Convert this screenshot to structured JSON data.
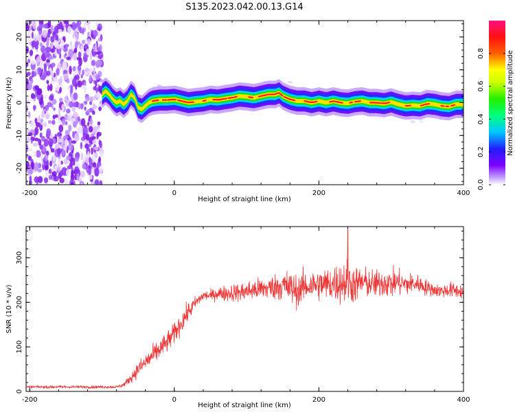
{
  "figure_title": "S135.2023.042.00.13.G14",
  "chart_data": [
    {
      "type": "heatmap",
      "xlabel": "Height of straight line (km)",
      "ylabel": "Frequency (Hz)",
      "xlim": [
        -205,
        400
      ],
      "ylim": [
        -25,
        25
      ],
      "x_ticks": [
        -200,
        0,
        200,
        400
      ],
      "y_ticks": [
        -20,
        -10,
        0,
        10,
        20
      ],
      "colorbar": {
        "label": "Normalized spectral amplitude",
        "range": [
          0.0,
          1.0
        ],
        "ticks": [
          0.0,
          0.2,
          0.4,
          0.6,
          0.8
        ],
        "tick_labels": [
          "0.0",
          "0.2",
          "0.4",
          "0.6",
          "0.8"
        ]
      },
      "noise_region_x": [
        -205,
        -100
      ],
      "ridge": {
        "x": [
          -100,
          -95,
          -90,
          -85,
          -80,
          -75,
          -70,
          -65,
          -60,
          -55,
          -50,
          -45,
          -40,
          -35,
          -30,
          -20,
          -10,
          0,
          10,
          20,
          30,
          40,
          50,
          60,
          70,
          80,
          90,
          100,
          110,
          120,
          130,
          140,
          145,
          150,
          160,
          170,
          180,
          190,
          200,
          210,
          220,
          230,
          240,
          250,
          260,
          270,
          280,
          290,
          300,
          310,
          320,
          330,
          340,
          350,
          360,
          370,
          380,
          390,
          400
        ],
        "freq": [
          2.5,
          3.5,
          2.5,
          1.0,
          0.0,
          0.5,
          -0.5,
          0.5,
          2.5,
          1.5,
          -1.5,
          -2.0,
          -1.0,
          0.0,
          0.5,
          0.8,
          0.8,
          1.0,
          0.5,
          0.0,
          0.3,
          0.5,
          1.0,
          0.8,
          1.2,
          1.5,
          2.0,
          1.8,
          1.5,
          2.0,
          2.5,
          2.5,
          3.0,
          2.0,
          1.0,
          0.5,
          0.5,
          0.0,
          0.5,
          0.0,
          0.5,
          0.0,
          -0.2,
          0.3,
          0.5,
          0.0,
          0.0,
          -0.3,
          0.2,
          -0.5,
          -1.0,
          -0.8,
          -1.0,
          -0.3,
          -0.5,
          -1.0,
          -1.2,
          -0.5,
          -0.5
        ]
      }
    },
    {
      "type": "line",
      "xlabel": "Height of straight line (km)",
      "ylabel": "SNR (10 * v/v)",
      "xlim": [
        -205,
        400
      ],
      "ylim": [
        0,
        370
      ],
      "x_ticks": [
        -200,
        0,
        200,
        400
      ],
      "y_ticks": [
        0,
        100,
        200,
        300
      ],
      "series": [
        {
          "color": "#ee3333",
          "x": [
            -205,
            -180,
            -160,
            -140,
            -120,
            -100,
            -80,
            -70,
            -60,
            -50,
            -40,
            -30,
            -20,
            -10,
            0,
            10,
            20,
            30,
            40,
            50,
            60,
            70,
            80,
            90,
            100,
            110,
            120,
            130,
            140,
            150,
            160,
            170,
            180,
            190,
            200,
            210,
            220,
            230,
            240,
            250,
            260,
            270,
            280,
            290,
            300,
            310,
            320,
            330,
            340,
            350,
            360,
            370,
            380,
            390,
            400
          ],
          "mean": [
            10,
            10,
            10,
            10,
            10,
            10,
            10,
            15,
            30,
            50,
            65,
            80,
            95,
            110,
            130,
            155,
            180,
            200,
            215,
            215,
            220,
            220,
            222,
            222,
            225,
            228,
            230,
            232,
            235,
            238,
            232,
            225,
            235,
            238,
            240,
            240,
            242,
            245,
            245,
            240,
            245,
            242,
            240,
            245,
            242,
            245,
            240,
            242,
            240,
            232,
            228,
            225,
            228,
            226,
            225
          ],
          "spread": [
            5,
            5,
            5,
            5,
            5,
            5,
            5,
            8,
            18,
            30,
            35,
            40,
            40,
            40,
            40,
            40,
            35,
            25,
            20,
            20,
            25,
            30,
            35,
            35,
            40,
            40,
            45,
            45,
            50,
            60,
            70,
            60,
            60,
            60,
            60,
            65,
            70,
            80,
            90,
            70,
            60,
            55,
            55,
            55,
            55,
            50,
            45,
            40,
            35,
            30,
            25,
            25,
            30,
            30,
            30
          ],
          "peak_max": 365,
          "peak_x": 240
        }
      ]
    }
  ]
}
